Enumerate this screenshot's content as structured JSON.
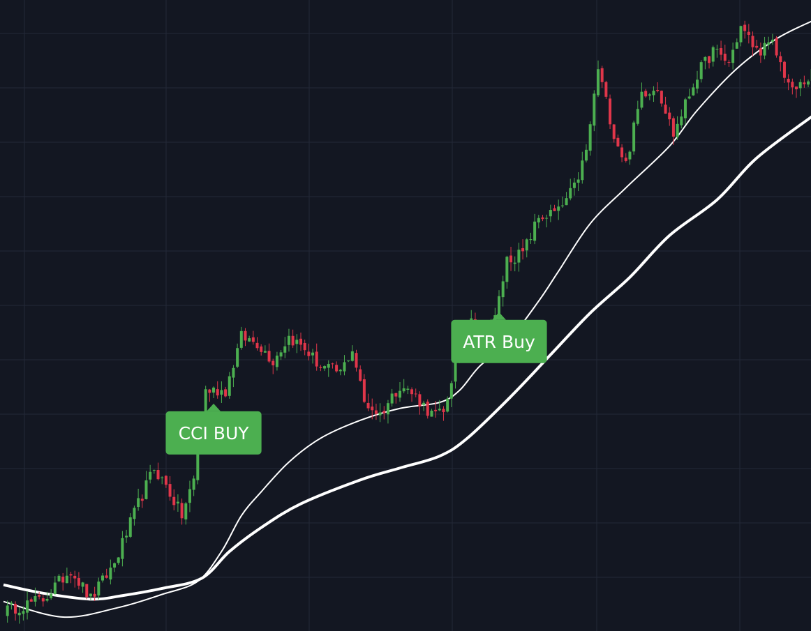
{
  "chart_data": {
    "type": "candlestick",
    "grid": true,
    "legend": "none",
    "colors": {
      "background": "#131722",
      "grid": "#232838",
      "up": "#4CAF50",
      "down": "#E0364A",
      "ma": "#ffffff",
      "signal_label": "#4CAF50",
      "signal_text": "#ffffff"
    },
    "x_range": [
      0,
      204
    ],
    "y_range": [
      0,
      100
    ],
    "anchors": [
      {
        "i": 0,
        "c": 1
      },
      {
        "i": 10,
        "c": 3
      },
      {
        "i": 17,
        "c": 8
      },
      {
        "i": 22,
        "c": 3
      },
      {
        "i": 28,
        "c": 9
      },
      {
        "i": 34,
        "c": 19
      },
      {
        "i": 38,
        "c": 25
      },
      {
        "i": 41,
        "c": 22
      },
      {
        "i": 45,
        "c": 17
      },
      {
        "i": 48,
        "c": 23
      },
      {
        "i": 51,
        "c": 38
      },
      {
        "i": 56,
        "c": 38
      },
      {
        "i": 60,
        "c": 47
      },
      {
        "i": 64,
        "c": 46
      },
      {
        "i": 68,
        "c": 43
      },
      {
        "i": 72,
        "c": 47
      },
      {
        "i": 76,
        "c": 45
      },
      {
        "i": 80,
        "c": 42
      },
      {
        "i": 85,
        "c": 41
      },
      {
        "i": 88,
        "c": 45
      },
      {
        "i": 91,
        "c": 36
      },
      {
        "i": 95,
        "c": 34
      },
      {
        "i": 100,
        "c": 39
      },
      {
        "i": 104,
        "c": 37
      },
      {
        "i": 108,
        "c": 34
      },
      {
        "i": 111,
        "c": 34
      },
      {
        "i": 114,
        "c": 43
      },
      {
        "i": 118,
        "c": 51
      },
      {
        "i": 121,
        "c": 46
      },
      {
        "i": 124,
        "c": 50
      },
      {
        "i": 127,
        "c": 60
      },
      {
        "i": 131,
        "c": 61
      },
      {
        "i": 135,
        "c": 67
      },
      {
        "i": 140,
        "c": 68
      },
      {
        "i": 144,
        "c": 72
      },
      {
        "i": 147,
        "c": 78
      },
      {
        "i": 150,
        "c": 92
      },
      {
        "i": 154,
        "c": 81
      },
      {
        "i": 157,
        "c": 76
      },
      {
        "i": 161,
        "c": 88
      },
      {
        "i": 165,
        "c": 89
      },
      {
        "i": 169,
        "c": 81
      },
      {
        "i": 172,
        "c": 86
      },
      {
        "i": 175,
        "c": 91
      },
      {
        "i": 179,
        "c": 95
      },
      {
        "i": 183,
        "c": 93
      },
      {
        "i": 186,
        "c": 99
      },
      {
        "i": 190,
        "c": 95
      },
      {
        "i": 194,
        "c": 96
      },
      {
        "i": 199,
        "c": 88
      },
      {
        "i": 204,
        "c": 91
      }
    ],
    "ma_fast": [
      [
        0,
        2.6
      ],
      [
        15,
        0
      ],
      [
        29,
        1.6
      ],
      [
        40,
        3.8
      ],
      [
        49,
        6.0
      ],
      [
        55,
        11
      ],
      [
        60,
        17
      ],
      [
        65,
        21
      ],
      [
        72,
        26
      ],
      [
        80,
        30
      ],
      [
        90,
        33
      ],
      [
        100,
        35
      ],
      [
        110,
        36
      ],
      [
        115,
        38
      ],
      [
        120,
        42
      ],
      [
        127,
        46
      ],
      [
        135,
        53
      ],
      [
        140,
        58
      ],
      [
        148,
        66
      ],
      [
        157,
        72
      ],
      [
        168,
        79
      ],
      [
        175,
        85
      ],
      [
        185,
        92
      ],
      [
        195,
        97
      ],
      [
        204,
        100
      ]
    ],
    "ma_slow": [
      [
        0,
        5.4
      ],
      [
        10,
        4.0
      ],
      [
        22,
        3.0
      ],
      [
        30,
        3.6
      ],
      [
        40,
        4.8
      ],
      [
        50,
        6.5
      ],
      [
        57,
        11
      ],
      [
        65,
        15
      ],
      [
        75,
        19
      ],
      [
        90,
        23
      ],
      [
        100,
        25
      ],
      [
        110,
        27
      ],
      [
        117,
        30
      ],
      [
        128,
        37
      ],
      [
        138,
        44
      ],
      [
        148,
        51
      ],
      [
        158,
        57
      ],
      [
        168,
        64
      ],
      [
        180,
        70
      ],
      [
        190,
        77
      ],
      [
        204,
        84
      ]
    ],
    "signals": [
      {
        "text": "CCI BUY",
        "bar": 53
      },
      {
        "text": "ATR Buy",
        "bar": 125
      }
    ]
  }
}
